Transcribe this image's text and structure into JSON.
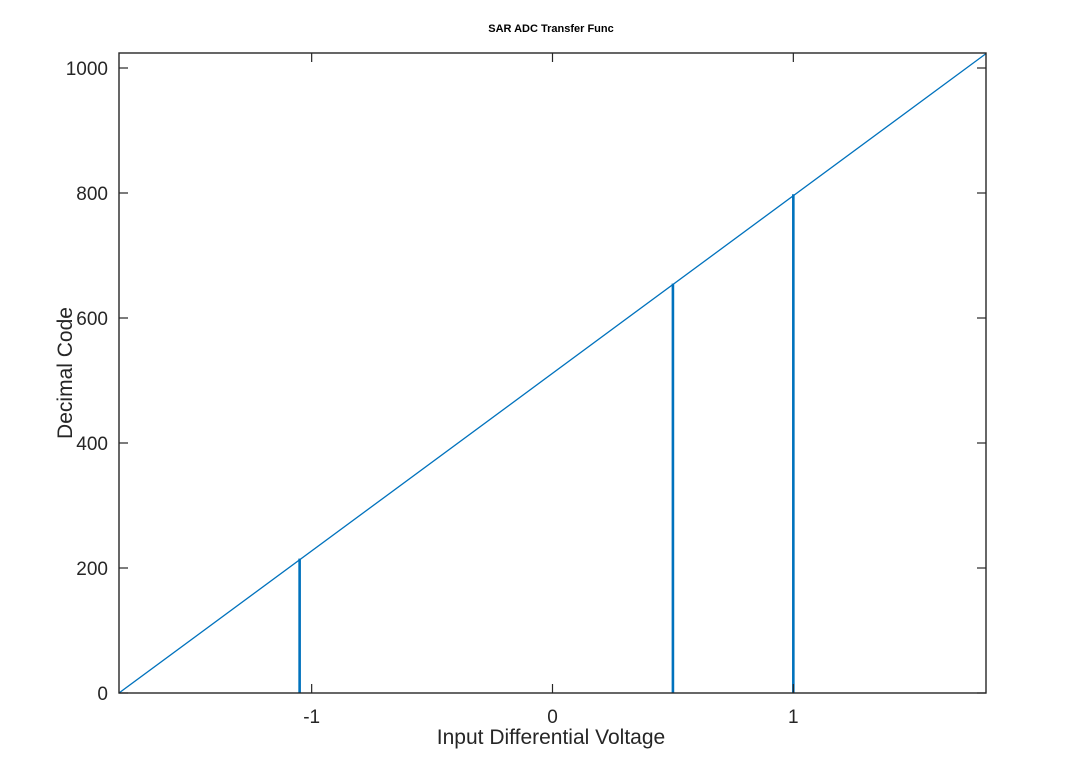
{
  "chart_data": {
    "type": "line",
    "title": "SAR ADC Transfer Func",
    "xlabel": "Input Differential Voltage",
    "ylabel": "Decimal Code",
    "xlim": [
      -1.8,
      1.8
    ],
    "ylim": [
      0,
      1000
    ],
    "x_ticks": [
      -1,
      0,
      1
    ],
    "x_tick_labels": [
      "-1",
      "0",
      "1"
    ],
    "y_ticks": [
      0,
      200,
      400,
      600,
      800,
      1000
    ],
    "y_tick_labels": [
      "0",
      "200",
      "400",
      "600",
      "800",
      "1000"
    ],
    "grid": false,
    "legend": "none",
    "series": [
      {
        "style": "line",
        "color": "#0072bd",
        "x": [
          -1.8,
          1.8
        ],
        "y": [
          0,
          1023
        ]
      },
      {
        "style": "stem",
        "color": "#0072bd",
        "x": [
          -1.05,
          0.5,
          1.0
        ],
        "y": [
          215,
          655,
          798
        ]
      }
    ]
  }
}
